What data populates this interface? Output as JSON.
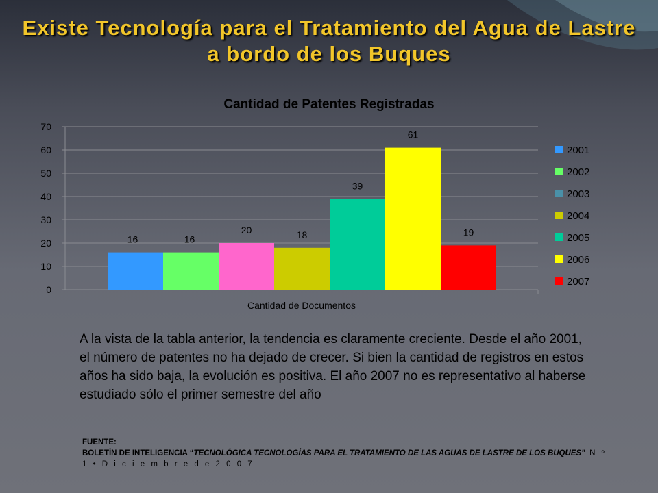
{
  "slide": {
    "title_line1": "Existe Tecnología para el Tratamiento del Agua de Lastre",
    "title_line2": "a bordo de los Buques",
    "body": "A la vista de la tabla anterior, la tendencia es claramente creciente. Desde el año 2001, el número de patentes no ha dejado de crecer. Si bien la cantidad de registros en estos años ha sido baja, la evolución es positiva. El año 2007 no es representativo al haberse estudiado sólo el primer semestre del año",
    "source_label": "FUENTE:",
    "source_prefix": "BOLETÍN DE INTELIGENCIA “",
    "source_italic": "TECNOLÓGICA TECNOLOGÍAS PARA EL TRATAMIENTO DE LAS AGUAS DE LASTRE DE LOS BUQUES”",
    "source_suffix": " N º 1 • D i c i e m b r e d e 2 0 0 7"
  },
  "chart_data": {
    "type": "bar",
    "title": "Cantidad de Patentes Registradas",
    "xlabel": "Cantidad de Documentos",
    "ylabel": "",
    "ylim": [
      0,
      70
    ],
    "yticks": [
      0,
      10,
      20,
      30,
      40,
      50,
      60,
      70
    ],
    "grid": true,
    "legend": "right",
    "series": [
      {
        "name": "2001",
        "value": 16,
        "color": "#3399ff"
      },
      {
        "name": "2002",
        "value": 16,
        "color": "#66ff66"
      },
      {
        "name": "2003",
        "value": 20,
        "color": "#ff66cc"
      },
      {
        "name": "2004",
        "value": 18,
        "color": "#cccc00"
      },
      {
        "name": "2005",
        "value": 39,
        "color": "#00cc99"
      },
      {
        "name": "2006",
        "value": 61,
        "color": "#ffff00"
      },
      {
        "name": "2007",
        "value": 19,
        "color": "#ff0000"
      }
    ],
    "legend_colors": [
      "#3399ff",
      "#66ff66",
      "#4a90a8",
      "#cccc00",
      "#00cc99",
      "#ffff00",
      "#ff0000"
    ]
  }
}
